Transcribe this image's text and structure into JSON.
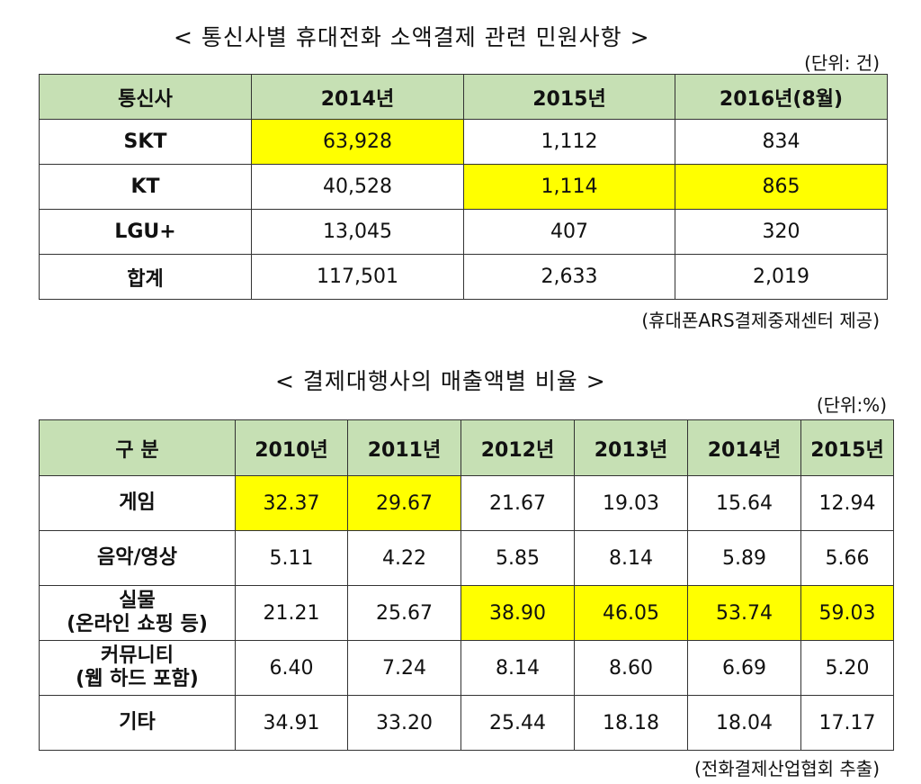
{
  "table1": {
    "title": "< 통신사별 휴대전화 소액결제 관련 민원사항 >",
    "unit": "(단위: 건)",
    "source": "(휴대폰ARS결제중재센터 제공)",
    "headers": [
      "통신사",
      "2014년",
      "2015년",
      "2016년(8월)"
    ],
    "rows": [
      {
        "label": "SKT",
        "values": [
          "63,928",
          "1,112",
          "834"
        ],
        "highlight": [
          true,
          false,
          false
        ]
      },
      {
        "label": "KT",
        "values": [
          "40,528",
          "1,114",
          "865"
        ],
        "highlight": [
          false,
          true,
          true
        ]
      },
      {
        "label": "LGU+",
        "values": [
          "13,045",
          "407",
          "320"
        ],
        "highlight": [
          false,
          false,
          false
        ]
      },
      {
        "label": "합계",
        "values": [
          "117,501",
          "2,633",
          "2,019"
        ],
        "highlight": [
          false,
          false,
          false
        ]
      }
    ]
  },
  "table2": {
    "title": "< 결제대행사의 매출액별 비율 >",
    "unit": "(단위:%)",
    "source": "(전화결제산업협회 추출)",
    "headers": [
      "구  분",
      "2010년",
      "2011년",
      "2012년",
      "2013년",
      "2014년",
      "2015년"
    ],
    "rows": [
      {
        "label": [
          "게임"
        ],
        "values": [
          "32.37",
          "29.67",
          "21.67",
          "19.03",
          "15.64",
          "12.94"
        ],
        "highlight": [
          true,
          true,
          false,
          false,
          false,
          false
        ]
      },
      {
        "label": [
          "음악/영상"
        ],
        "values": [
          "5.11",
          "4.22",
          "5.85",
          "8.14",
          "5.89",
          "5.66"
        ],
        "highlight": [
          false,
          false,
          false,
          false,
          false,
          false
        ]
      },
      {
        "label": [
          "실물",
          "(온라인 쇼핑 등)"
        ],
        "values": [
          "21.21",
          "25.67",
          "38.90",
          "46.05",
          "53.74",
          "59.03"
        ],
        "highlight": [
          false,
          false,
          true,
          true,
          true,
          true
        ]
      },
      {
        "label": [
          "커뮤니티",
          "(웹 하드 포함)"
        ],
        "values": [
          "6.40",
          "7.24",
          "8.14",
          "8.60",
          "6.69",
          "5.20"
        ],
        "highlight": [
          false,
          false,
          false,
          false,
          false,
          false
        ]
      },
      {
        "label": [
          "기타"
        ],
        "values": [
          "34.91",
          "33.20",
          "25.44",
          "18.18",
          "18.04",
          "17.17"
        ],
        "highlight": [
          false,
          false,
          false,
          false,
          false,
          false
        ]
      }
    ]
  },
  "colors": {
    "header_bg": "#c6e0b4",
    "highlight": "#ffff00",
    "border": "#333333"
  }
}
